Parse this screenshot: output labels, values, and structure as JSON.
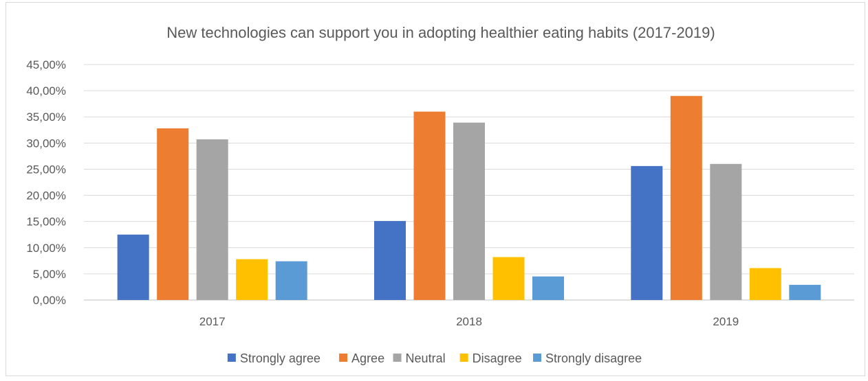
{
  "chart_data": {
    "type": "bar",
    "title": "New technologies can support you in adopting healthier eating habits (2017-2019)",
    "categories": [
      "2017",
      "2018",
      "2019"
    ],
    "series": [
      {
        "name": "Strongly agree",
        "color": "#4472c4",
        "values": [
          12.5,
          15.1,
          25.6
        ]
      },
      {
        "name": "Agree",
        "color": "#ed7d31",
        "values": [
          32.8,
          36.0,
          39.0
        ]
      },
      {
        "name": "Neutral",
        "color": "#a5a5a5",
        "values": [
          30.7,
          33.9,
          26.0
        ]
      },
      {
        "name": "Disagree",
        "color": "#ffc000",
        "values": [
          7.8,
          8.2,
          6.1
        ]
      },
      {
        "name": "Strongly disagree",
        "color": "#5b9bd5",
        "values": [
          7.4,
          4.5,
          2.9
        ]
      }
    ],
    "ylim": [
      0,
      45
    ],
    "y_ticks": [
      "0,00%",
      "5,00%",
      "10,00%",
      "15,00%",
      "20,00%",
      "25,00%",
      "30,00%",
      "35,00%",
      "40,00%",
      "45,00%"
    ],
    "y_tick_values": [
      0,
      5,
      10,
      15,
      20,
      25,
      30,
      35,
      40,
      45
    ],
    "grid": true,
    "legend_position": "bottom",
    "xlabel": "",
    "ylabel": ""
  }
}
